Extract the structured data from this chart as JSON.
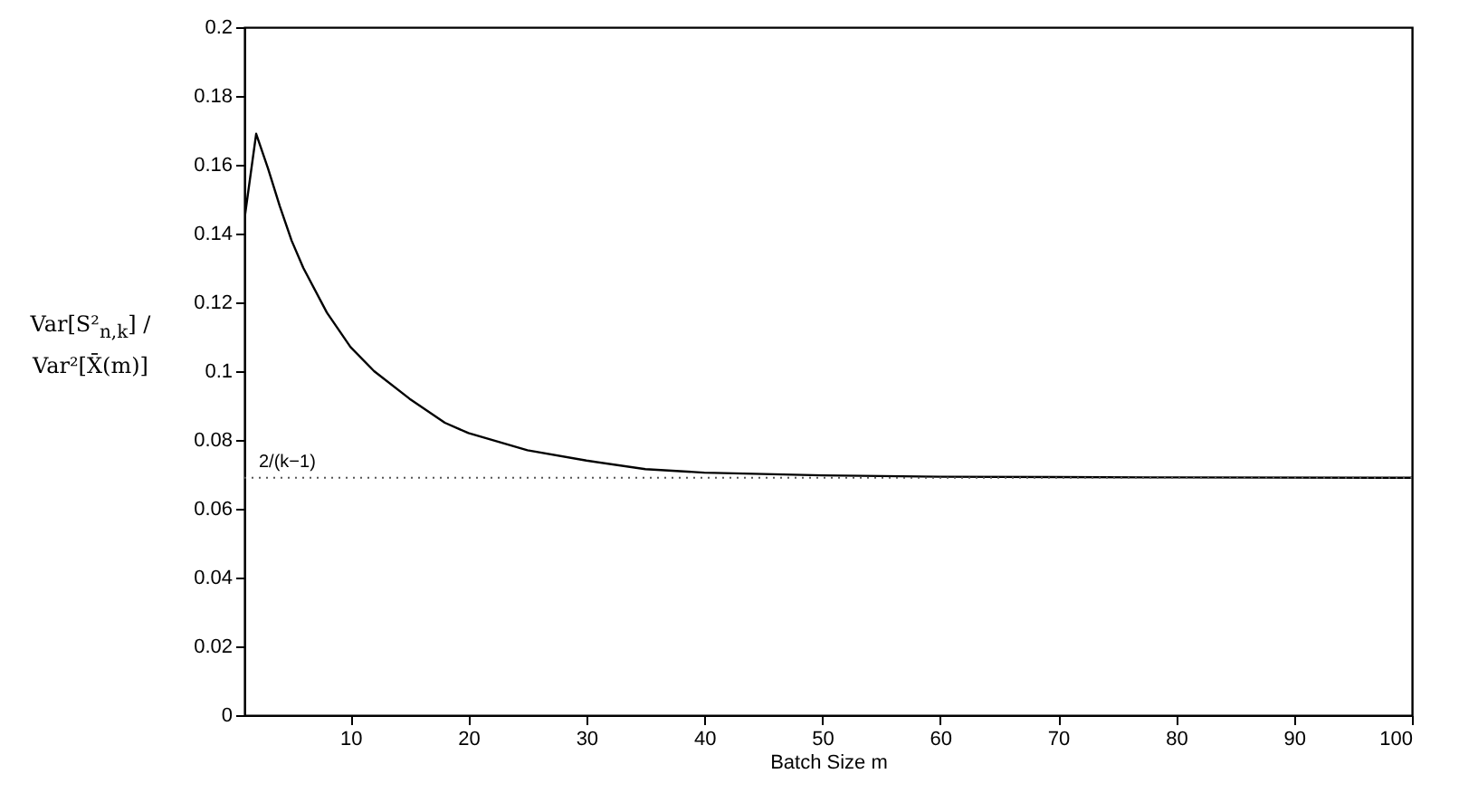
{
  "chart_data": {
    "type": "line",
    "xlabel": "Batch Size m",
    "ylabel": "Var[S²$_{n,k}$] / Var²[X̄(m)]",
    "x": [
      1,
      2,
      3,
      4,
      5,
      6,
      8,
      10,
      12,
      15,
      18,
      20,
      25,
      30,
      35,
      40,
      50,
      60,
      70,
      80,
      100
    ],
    "series": [
      {
        "color": "#000000",
        "values": [
          0.144,
          0.169,
          0.159,
          0.148,
          0.138,
          0.13,
          0.117,
          0.107,
          0.1,
          0.092,
          0.085,
          0.082,
          0.077,
          0.074,
          0.0715,
          0.0705,
          0.0697,
          0.0693,
          0.0692,
          0.0691,
          0.069
        ]
      }
    ],
    "xlim": [
      1,
      100
    ],
    "xticks": [
      10,
      20,
      30,
      40,
      50,
      60,
      70,
      80,
      90,
      100
    ],
    "ylim": [
      0,
      0.2
    ],
    "yticks": [
      0,
      0.02,
      0.04,
      0.06,
      0.08,
      0.1,
      0.12,
      0.14,
      0.16,
      0.18,
      0.2
    ],
    "ref_lines": [
      {
        "axis": "y",
        "value": 0.069,
        "label": "2/(k−1)",
        "line_style": "dotted",
        "color": "#555555"
      }
    ]
  }
}
